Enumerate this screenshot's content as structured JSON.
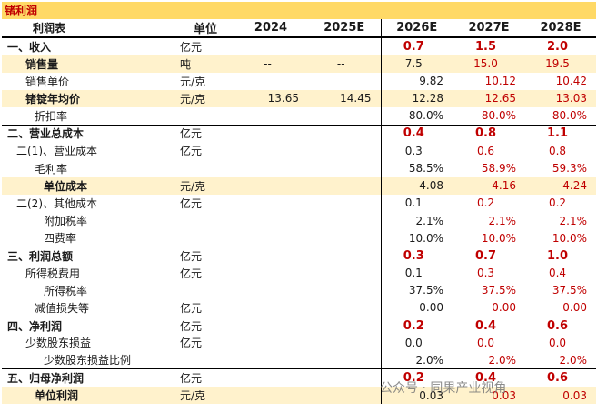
{
  "title": "锗利润",
  "header": {
    "label": "利润表",
    "unit": "单位",
    "years": [
      "2024",
      "2025E",
      "2026E",
      "2027E",
      "2028E"
    ]
  },
  "rows": [
    {
      "label": "一、收入",
      "unit": "亿元",
      "values": [
        "",
        "",
        "0.7",
        "1.5",
        "2.0"
      ]
    },
    {
      "label": "销售量",
      "unit": "吨",
      "values": [
        "--",
        "--",
        "7.5",
        "15.0",
        "19.5"
      ]
    },
    {
      "label": "销售单价",
      "unit": "元/克",
      "values": [
        "",
        "",
        "9.82",
        "10.12",
        "10.42"
      ]
    },
    {
      "label": "锗锭年均价",
      "unit": "元/克",
      "values": [
        "13.65",
        "14.45",
        "12.28",
        "12.65",
        "13.03"
      ]
    },
    {
      "label": "折扣率",
      "unit": "",
      "values": [
        "",
        "",
        "80.0%",
        "80.0%",
        "80.0%"
      ]
    },
    {
      "label": "二、营业总成本",
      "unit": "亿元",
      "values": [
        "",
        "",
        "0.4",
        "0.8",
        "1.1"
      ]
    },
    {
      "label": "二(1)、营业成本",
      "unit": "亿元",
      "values": [
        "",
        "",
        "0.3",
        "0.6",
        "0.8"
      ]
    },
    {
      "label": "毛利率",
      "unit": "",
      "values": [
        "",
        "",
        "58.5%",
        "58.9%",
        "59.3%"
      ]
    },
    {
      "label": "单位成本",
      "unit": "元/克",
      "values": [
        "",
        "",
        "4.08",
        "4.16",
        "4.24"
      ]
    },
    {
      "label": "二(2)、其他成本",
      "unit": "亿元",
      "values": [
        "",
        "",
        "0.1",
        "0.2",
        "0.2"
      ]
    },
    {
      "label": "附加税率",
      "unit": "",
      "values": [
        "",
        "",
        "2.1%",
        "2.1%",
        "2.1%"
      ]
    },
    {
      "label": "四费率",
      "unit": "",
      "values": [
        "",
        "",
        "10.0%",
        "10.0%",
        "10.0%"
      ]
    },
    {
      "label": "三、利润总额",
      "unit": "亿元",
      "values": [
        "",
        "",
        "0.3",
        "0.7",
        "1.0"
      ]
    },
    {
      "label": "所得税费用",
      "unit": "亿元",
      "values": [
        "",
        "",
        "0.1",
        "0.3",
        "0.4"
      ]
    },
    {
      "label": "所得税率",
      "unit": "",
      "values": [
        "",
        "",
        "37.5%",
        "37.5%",
        "37.5%"
      ]
    },
    {
      "label": "减值损失等",
      "unit": "亿元",
      "values": [
        "",
        "",
        "0.00",
        "0.00",
        "0.00"
      ]
    },
    {
      "label": "四、净利润",
      "unit": "亿元",
      "values": [
        "",
        "",
        "0.2",
        "0.4",
        "0.6"
      ]
    },
    {
      "label": "少数股东损益",
      "unit": "亿元",
      "values": [
        "",
        "",
        "0.0",
        "0.0",
        "0.0"
      ]
    },
    {
      "label": "少数股东损益比例",
      "unit": "",
      "values": [
        "",
        "",
        "2.0%",
        "2.0%",
        "2.0%"
      ]
    },
    {
      "label": "五、归母净利润",
      "unit": "亿元",
      "values": [
        "",
        "",
        "0.2",
        "0.4",
        "0.6"
      ]
    },
    {
      "label": "单位利润",
      "unit": "元/克",
      "values": [
        "",
        "",
        "0.03",
        "0.03",
        "0.03"
      ]
    }
  ],
  "watermark": "公众号 · 同果产业视角",
  "colors": {
    "title_bg": "#ffd966",
    "highlight_bg": "#fff2cc",
    "forecast_text": "#c00000"
  }
}
